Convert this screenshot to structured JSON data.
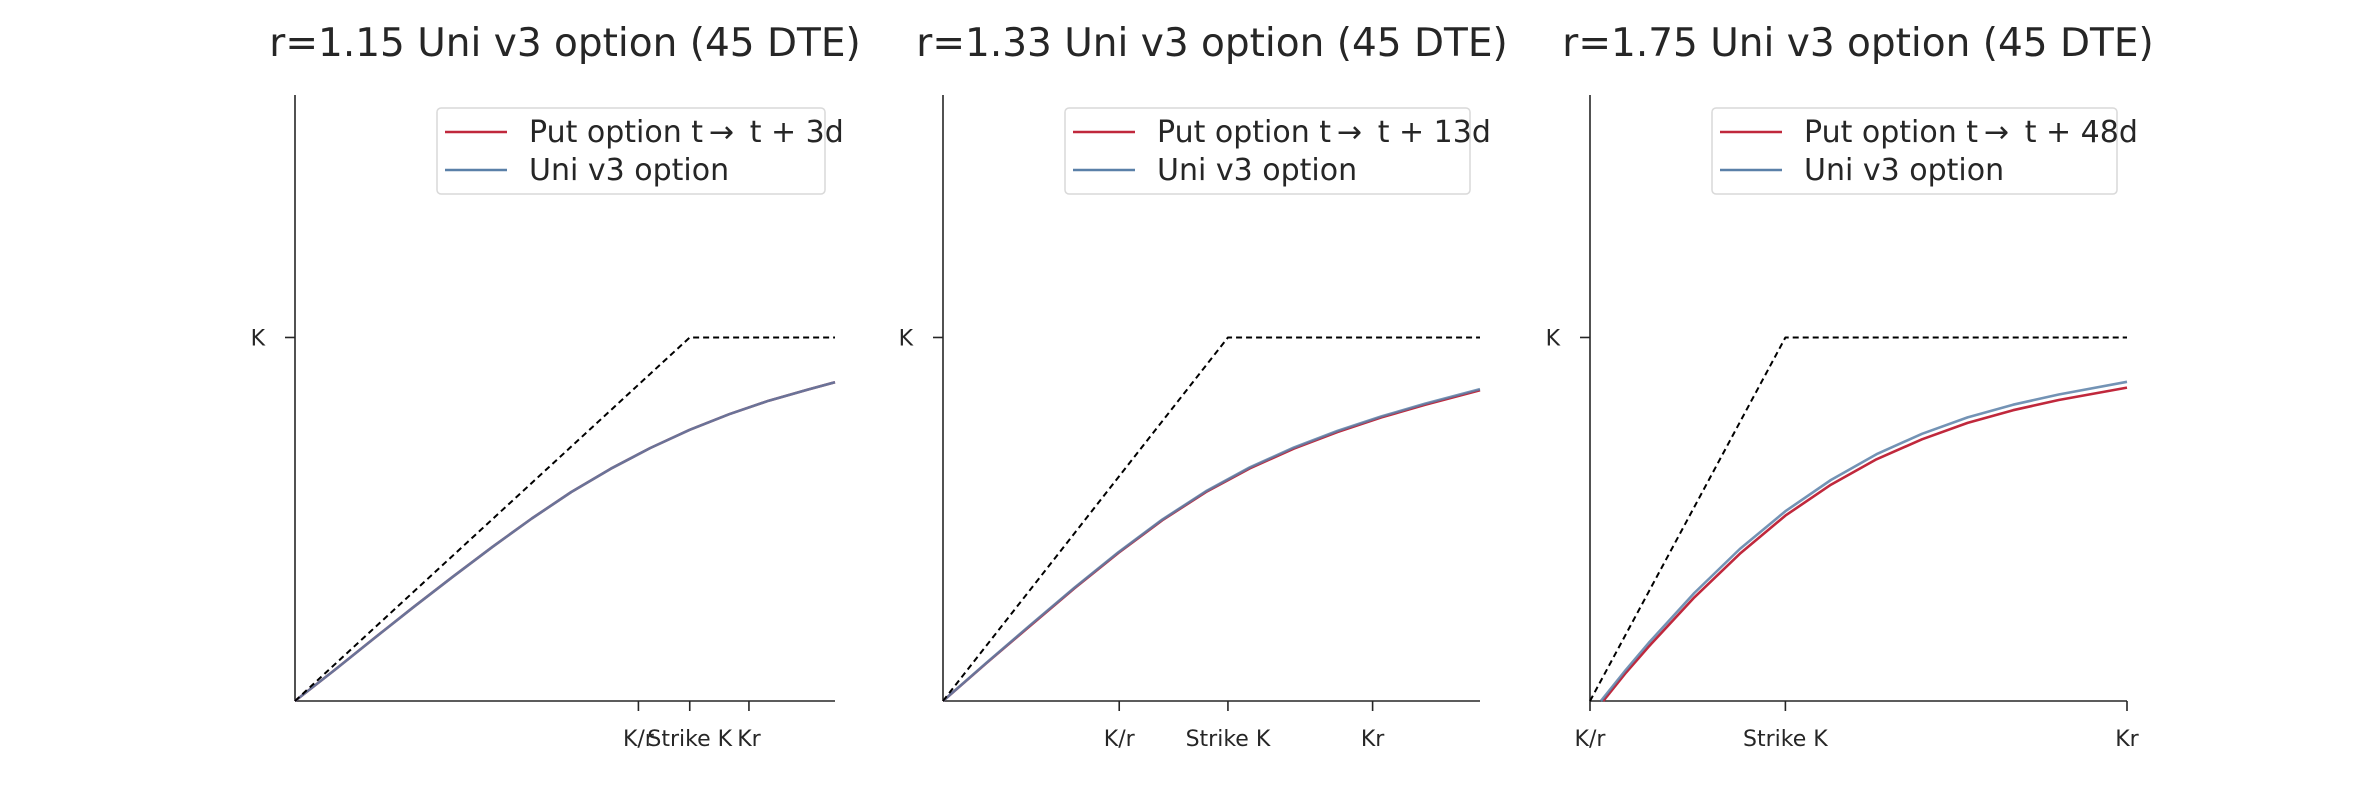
{
  "colors": {
    "put": "#c0283c",
    "uni": "#5a80a8",
    "payoff": "#000000"
  },
  "chart_data": [
    {
      "type": "line",
      "title": "r=1.15 Uni v3 option (45 DTE)",
      "r": 1.15,
      "xlim": [
        0,
        1.368
      ],
      "ylim": [
        0,
        1.667
      ],
      "y_ticks": [
        {
          "value": 1.0,
          "label": "K"
        }
      ],
      "x_ticks": [
        {
          "value": 0.87,
          "label": "K/r"
        },
        {
          "value": 1.0,
          "label": "Strike K"
        },
        {
          "value": 1.15,
          "label": "Kr"
        }
      ],
      "legend": {
        "position": "upper right",
        "entries": [
          "Put option t →  t + 3d",
          "Uni v3 option"
        ]
      },
      "series": [
        {
          "name": "Put option t →  t + 3d",
          "color_key": "put",
          "x": [
            0.0,
            0.1,
            0.2,
            0.3,
            0.4,
            0.5,
            0.6,
            0.7,
            0.8,
            0.9,
            1.0,
            1.1,
            1.2,
            1.3,
            1.368
          ],
          "y": [
            0.0,
            0.085,
            0.172,
            0.258,
            0.342,
            0.424,
            0.502,
            0.575,
            0.639,
            0.696,
            0.746,
            0.789,
            0.826,
            0.857,
            0.877
          ]
        },
        {
          "name": "Uni v3 option",
          "color_key": "uni",
          "x": [
            0.0,
            0.1,
            0.2,
            0.3,
            0.4,
            0.5,
            0.6,
            0.7,
            0.8,
            0.9,
            1.0,
            1.1,
            1.2,
            1.3,
            1.368
          ],
          "y": [
            0.0,
            0.085,
            0.172,
            0.258,
            0.342,
            0.424,
            0.502,
            0.575,
            0.639,
            0.696,
            0.746,
            0.789,
            0.826,
            0.857,
            0.877
          ]
        },
        {
          "name": "",
          "color_key": "payoff",
          "dashed": true,
          "x": [
            0.0,
            1.0,
            1.368
          ],
          "y": [
            0.0,
            1.0,
            1.0
          ]
        }
      ]
    },
    {
      "type": "line",
      "title": "r=1.33 Uni v3 option (45 DTE)",
      "r": 1.33,
      "xlim": [
        0.35,
        1.575
      ],
      "ylim": [
        0,
        1.667
      ],
      "y_ticks": [
        {
          "value": 1.0,
          "label": "K"
        }
      ],
      "x_ticks": [
        {
          "value": 0.752,
          "label": "K/r"
        },
        {
          "value": 1.0,
          "label": "Strike K"
        },
        {
          "value": 1.33,
          "label": "Kr"
        }
      ],
      "legend": {
        "position": "upper right",
        "entries": [
          "Put option t →  t + 13d",
          "Uni v3 option"
        ]
      },
      "series": [
        {
          "name": "Put option t →  t + 13d",
          "color_key": "put",
          "x": [
            0.35,
            0.45,
            0.55,
            0.65,
            0.75,
            0.85,
            0.95,
            1.05,
            1.15,
            1.25,
            1.35,
            1.45,
            1.575
          ],
          "y": [
            0.0,
            0.105,
            0.208,
            0.31,
            0.407,
            0.497,
            0.575,
            0.64,
            0.694,
            0.74,
            0.78,
            0.815,
            0.855
          ]
        },
        {
          "name": "Uni v3 option",
          "color_key": "uni",
          "x": [
            0.35,
            0.45,
            0.55,
            0.65,
            0.75,
            0.85,
            0.95,
            1.05,
            1.15,
            1.25,
            1.35,
            1.45,
            1.575
          ],
          "y": [
            0.0,
            0.106,
            0.21,
            0.312,
            0.409,
            0.499,
            0.577,
            0.643,
            0.697,
            0.743,
            0.783,
            0.818,
            0.858
          ]
        },
        {
          "name": "",
          "color_key": "payoff",
          "dashed": true,
          "x": [
            0.35,
            1.0,
            1.575
          ],
          "y": [
            0.0,
            1.0,
            1.0
          ]
        }
      ]
    },
    {
      "type": "line",
      "title": "r=1.75 Uni v3 option (45 DTE)",
      "r": 1.75,
      "xlim": [
        0.571,
        1.75
      ],
      "ylim": [
        0,
        1.667
      ],
      "y_ticks": [
        {
          "value": 1.0,
          "label": "K"
        }
      ],
      "x_ticks": [
        {
          "value": 0.571,
          "label": "K/r"
        },
        {
          "value": 1.0,
          "label": "Strike K"
        },
        {
          "value": 1.75,
          "label": "Kr"
        }
      ],
      "legend": {
        "position": "upper right",
        "entries": [
          "Put option t →  t + 48d",
          "Uni v3 option"
        ]
      },
      "series": [
        {
          "name": "Put option t →  t + 48d",
          "color_key": "put",
          "x": [
            0.6,
            0.65,
            0.7,
            0.8,
            0.9,
            1.0,
            1.1,
            1.2,
            1.3,
            1.4,
            1.5,
            1.6,
            1.75
          ],
          "y": [
            0.0,
            0.078,
            0.15,
            0.285,
            0.405,
            0.51,
            0.595,
            0.665,
            0.72,
            0.765,
            0.8,
            0.828,
            0.862
          ]
        },
        {
          "name": "Uni v3 option",
          "color_key": "uni",
          "x": [
            0.595,
            0.65,
            0.7,
            0.8,
            0.9,
            1.0,
            1.1,
            1.2,
            1.3,
            1.4,
            1.5,
            1.6,
            1.75
          ],
          "y": [
            0.0,
            0.086,
            0.16,
            0.297,
            0.418,
            0.522,
            0.608,
            0.679,
            0.735,
            0.78,
            0.815,
            0.843,
            0.878
          ]
        },
        {
          "name": "",
          "color_key": "payoff",
          "dashed": true,
          "x": [
            0.571,
            1.0,
            1.75
          ],
          "y": [
            0.0,
            1.0,
            1.0
          ]
        }
      ]
    }
  ]
}
